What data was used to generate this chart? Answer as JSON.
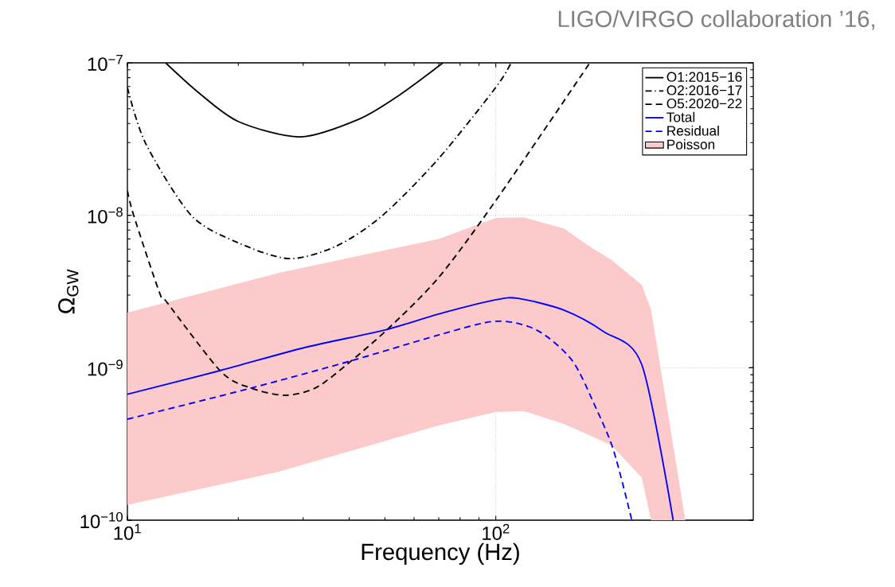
{
  "chart_data": {
    "type": "line",
    "xlabel": "Frequency (Hz)",
    "ylabel": "Ω$_{GW}$",
    "annotations": [
      "LIGO/VIRGO collaboration ’16,"
    ],
    "log": "xy",
    "xlim": [
      10,
      500
    ],
    "ylim": [
      1e-10,
      1e-07
    ],
    "xticks": [
      {
        "value": 10,
        "label": "10$^{1}$"
      },
      {
        "value": 100,
        "label": "10$^{2}$"
      }
    ],
    "yticks": [
      {
        "value": 1e-10,
        "label": "10$^{−10}$"
      },
      {
        "value": 1e-09,
        "label": "10$^{−9}$"
      },
      {
        "value": 1e-08,
        "label": "10$^{−8}$"
      },
      {
        "value": 1e-07,
        "label": "10$^{−7}$"
      }
    ],
    "grid": true,
    "legend": "top right",
    "series": [
      {
        "name": "O1:2015−16",
        "color": "#000000",
        "line_style": "solid",
        "x": [
          12.7,
          15.7,
          20.1,
          29.5,
          42.5,
          54.5,
          71.9
        ],
        "values": [
          1e-07,
          6.3e-08,
          4.1e-08,
          3.27e-08,
          4.27e-08,
          6.1e-08,
          1e-07
        ]
      },
      {
        "name": "O2:2016−17",
        "color": "#000000",
        "line_style": "dashdot",
        "x": [
          10,
          11.2,
          14.9,
          20,
          27.5,
          37,
          49.3,
          69.8,
          100,
          110
        ],
        "values": [
          6.9e-08,
          2.97e-08,
          1e-08,
          6.6e-09,
          5.2e-09,
          6.3e-09,
          1e-08,
          2.34e-08,
          6.9e-08,
          1e-07
        ]
      },
      {
        "name": "O5:2020−22",
        "color": "#000000",
        "line_style": "dashed",
        "x": [
          10,
          10.4,
          12.2,
          12.8,
          17.9,
          21.5,
          26.7,
          32.5,
          39.8,
          51.1,
          69.9,
          100,
          180
        ],
        "values": [
          1.45e-08,
          1e-08,
          3.15e-09,
          2.69e-09,
          9.5e-10,
          7.4e-10,
          6.6e-10,
          7.4e-10,
          1.07e-09,
          1.81e-09,
          3.9e-09,
          1.25e-08,
          1e-07
        ]
      },
      {
        "name": "Total",
        "color": "#0000ff",
        "line_style": "solid",
        "x": [
          10,
          17.9,
          30.4,
          50.0,
          69.9,
          100,
          115,
          153,
          196,
          249,
          303
        ],
        "values": [
          6.7e-10,
          9.6e-10,
          1.36e-09,
          1.77e-09,
          2.25e-09,
          2.79e-09,
          2.85e-09,
          2.39e-09,
          1.73e-09,
          1.05e-09,
          1e-10
        ]
      },
      {
        "name": "Residual",
        "color": "#0000ff",
        "line_style": "dashed",
        "x": [
          10,
          21.4,
          41.0,
          69.9,
          100,
          129,
          161,
          187,
          209,
          234
        ],
        "values": [
          4.6e-10,
          7.3e-10,
          1.12e-09,
          1.64e-09,
          2.02e-09,
          1.77e-09,
          1.12e-09,
          5.45e-10,
          2.85e-10,
          1e-10
        ]
      },
      {
        "name": "Poisson",
        "type": "area",
        "color": "#fccaca",
        "x": [
          10,
          25.8,
          69.9,
          100,
          119,
          153,
          180,
          206,
          249,
          264,
          327
        ],
        "values": [
          null,
          null,
          null,
          null,
          null,
          null,
          null,
          null,
          null,
          null,
          null
        ],
        "upper": [
          2.3e-09,
          4.2e-09,
          7e-09,
          9.6e-09,
          9.7e-09,
          8.2e-09,
          6.24e-09,
          5.1e-09,
          3.5e-09,
          2.4e-09,
          1e-10
        ],
        "lower": [
          1.26e-10,
          2.08e-10,
          4.18e-10,
          5.13e-10,
          5.2e-10,
          4.28e-10,
          3.6e-10,
          3.1e-10,
          1.9e-10,
          1e-10,
          1e-10
        ]
      }
    ]
  }
}
